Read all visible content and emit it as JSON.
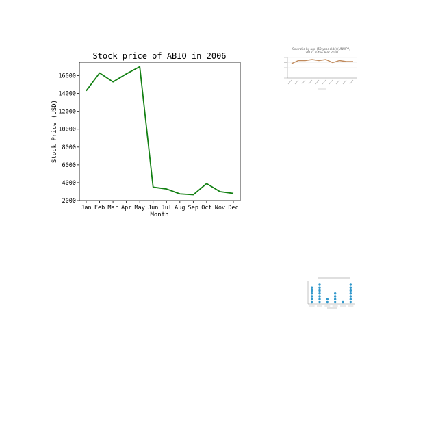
{
  "colors": {
    "main_line": "#138013",
    "thumb_line": "#c08a5c",
    "thumb_dots": "#3399cc",
    "axis": "#000000",
    "thumb_text": "#555555"
  },
  "chart_data": [
    {
      "type": "line",
      "title": "Stock price of ABIO in 2006",
      "xlabel": "Month",
      "ylabel": "Stock Price (USD)",
      "categories": [
        "Jan",
        "Feb",
        "Mar",
        "Apr",
        "May",
        "Jun",
        "Jul",
        "Aug",
        "Sep",
        "Oct",
        "Nov",
        "Dec"
      ],
      "values": [
        14300,
        16300,
        15300,
        16200,
        17000,
        3500,
        3300,
        2750,
        2650,
        3900,
        3000,
        2800
      ],
      "ylim": [
        2000,
        17500
      ],
      "yticks": [
        2000,
        4000,
        6000,
        8000,
        10000,
        12000,
        14000,
        16000
      ],
      "grid": false,
      "legend": "none"
    },
    {
      "type": "line",
      "title": "Sex ratio by age (50 year olds) (UNWPP, 2017) in the Year 2010",
      "values": [
        94,
        97,
        97,
        98,
        97,
        98,
        95,
        97,
        96,
        96
      ],
      "ylim": [
        80,
        100
      ],
      "grid": true,
      "legend": "none"
    },
    {
      "type": "scatter",
      "values": [
        6,
        7,
        2,
        4,
        1,
        7
      ],
      "ylim": [
        0,
        8
      ],
      "legend": "none"
    }
  ]
}
